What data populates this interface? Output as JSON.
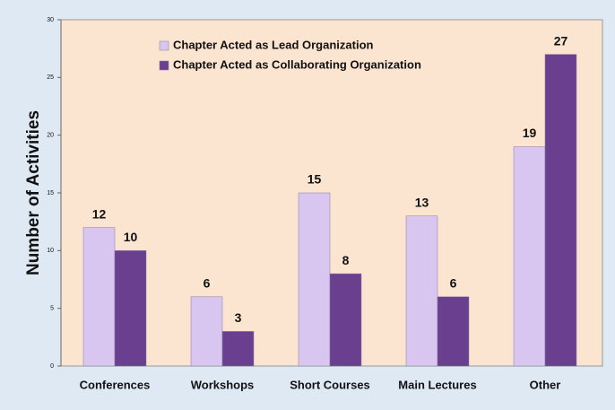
{
  "chart_data": {
    "type": "bar",
    "ylabel": "Number of Activities",
    "categories": [
      "Conferences",
      "Workshops",
      "Short Courses",
      "Main Lectures",
      "Other"
    ],
    "series": [
      {
        "name": "Chapter Acted as Lead Organization",
        "color": "#d8c6f0",
        "values": [
          12,
          6,
          15,
          13,
          19
        ]
      },
      {
        "name": "Chapter Acted as Collaborating Organization",
        "color": "#6b3f90",
        "values": [
          10,
          3,
          8,
          6,
          27
        ]
      }
    ],
    "ylim": [
      0,
      30
    ],
    "yticks": [
      0,
      5,
      10,
      15,
      20,
      25,
      30
    ],
    "grid": false,
    "legend": "top-left"
  }
}
